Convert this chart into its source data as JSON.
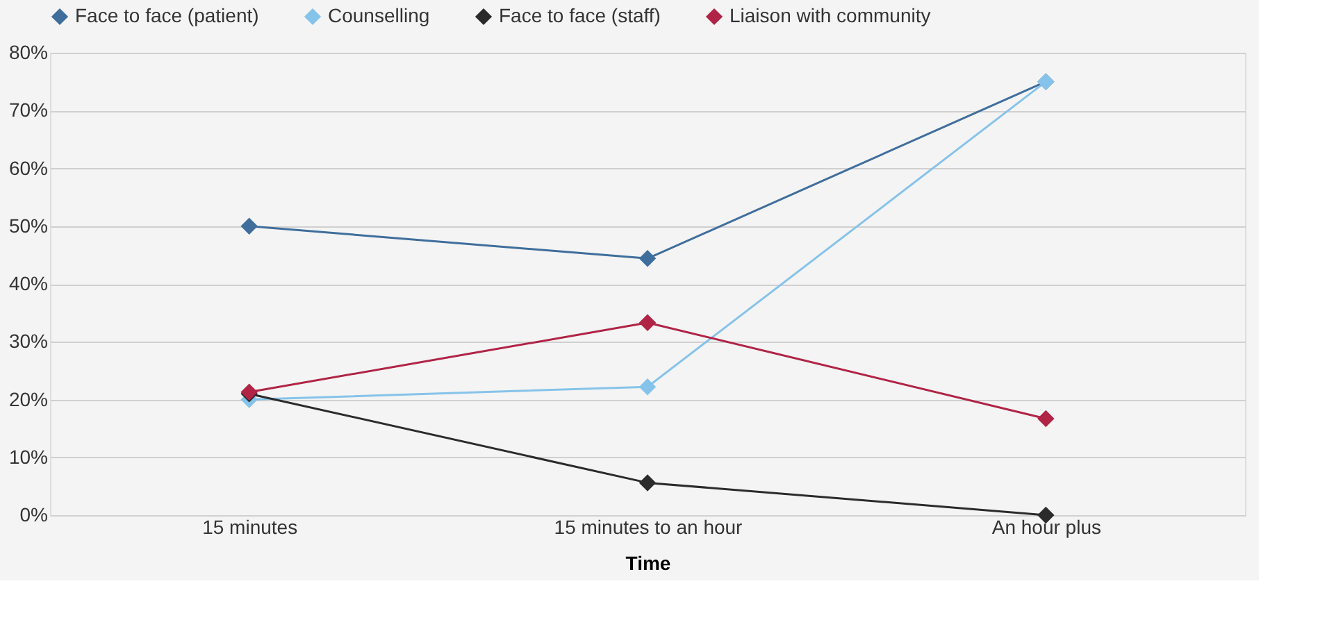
{
  "chart_data": {
    "type": "line",
    "xlabel": "Time",
    "categories": [
      "15 minutes",
      "15 minutes to an hour",
      "An hour plus"
    ],
    "series": [
      {
        "name": "Face to face (patient)",
        "color": "#3f6e9c",
        "values": [
          50,
          44.4,
          75
        ]
      },
      {
        "name": "Counselling",
        "color": "#86c3ea",
        "values": [
          20,
          22.2,
          75
        ]
      },
      {
        "name": "Face to face (staff)",
        "color": "#2b2b2b",
        "values": [
          21,
          5.6,
          0
        ]
      },
      {
        "name": "Liaison with community",
        "color": "#b02446",
        "values": [
          21.3,
          33.3,
          16.7
        ]
      }
    ],
    "ylim": [
      0,
      80
    ],
    "yticks": [
      {
        "value": 0,
        "label": "0%"
      },
      {
        "value": 10,
        "label": "10%"
      },
      {
        "value": 20,
        "label": "20%"
      },
      {
        "value": 30,
        "label": "30%"
      },
      {
        "value": 40,
        "label": "40%"
      },
      {
        "value": 50,
        "label": "50%"
      },
      {
        "value": 60,
        "label": "60%"
      },
      {
        "value": 70,
        "label": "70%"
      },
      {
        "value": 80,
        "label": "80%"
      }
    ],
    "grid": "y",
    "legend": "top",
    "marker": "diamond",
    "line_style": "solid"
  }
}
